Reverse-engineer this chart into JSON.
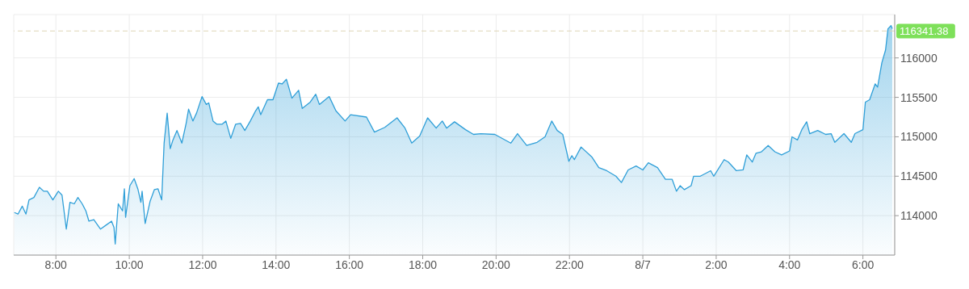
{
  "chart_data": {
    "type": "area",
    "x": [
      "--08-06T06:52",
      "--08-06T06:58",
      "--08-06T07:05",
      "--08-06T07:11",
      "--08-06T07:16",
      "--08-06T07:24",
      "--08-06T07:33",
      "--08-06T07:40",
      "--08-06T07:46",
      "--08-06T07:55",
      "--08-06T08:04",
      "--08-06T08:10",
      "--08-06T08:17",
      "--08-06T08:23",
      "--08-06T08:30",
      "--08-06T08:36",
      "--08-06T08:43",
      "--08-06T08:49",
      "--08-06T08:54",
      "--08-06T09:02",
      "--08-06T09:13",
      "--08-06T09:22",
      "--08-06T09:31",
      "--08-06T09:35",
      "--08-06T09:37",
      "--08-06T09:42",
      "--08-06T09:49",
      "--08-06T09:52",
      "--08-06T09:54",
      "--08-06T10:01",
      "--08-06T10:08",
      "--08-06T10:14",
      "--08-06T10:19",
      "--08-06T10:21",
      "--08-06T10:26",
      "--08-06T10:34",
      "--08-06T10:41",
      "--08-06T10:47",
      "--08-06T10:53",
      "--08-06T10:57",
      "--08-06T11:02",
      "--08-06T11:07",
      "--08-06T11:11",
      "--08-06T11:18",
      "--08-06T11:26",
      "--08-06T11:33",
      "--08-06T11:37",
      "--08-06T11:44",
      "--08-06T11:50",
      "--08-06T11:59",
      "--08-06T12:06",
      "--08-06T12:10",
      "--08-06T12:17",
      "--08-06T12:23",
      "--08-06T12:32",
      "--08-06T12:38",
      "--08-06T12:46",
      "--08-06T12:54",
      "--08-06T13:02",
      "--08-06T13:09",
      "--08-06T13:18",
      "--08-06T13:26",
      "--08-06T13:31",
      "--08-06T13:35",
      "--08-06T13:46",
      "--08-06T13:55",
      "--08-06T14:04",
      "--08-06T14:10",
      "--08-06T14:17",
      "--08-06T14:26",
      "--08-06T14:37",
      "--08-06T14:43",
      "--08-06T14:56",
      "--08-06T15:05",
      "--08-06T15:11",
      "--08-06T15:27",
      "--08-06T15:38",
      "--08-06T15:53",
      "--08-06T16:02",
      "--08-06T16:28",
      "--08-06T16:41",
      "--08-06T16:58",
      "--08-06T17:18",
      "--08-06T17:31",
      "--08-06T17:42",
      "--08-06T17:55",
      "--08-06T18:08",
      "--08-06T18:22",
      "--08-06T18:32",
      "--08-06T18:39",
      "--08-06T18:52",
      "--08-06T19:10",
      "--08-06T19:23",
      "--08-06T19:35",
      "--08-06T19:58",
      "--08-06T20:24",
      "--08-06T20:35",
      "--08-06T20:50",
      "--08-06T21:07",
      "--08-06T21:20",
      "--08-06T21:31",
      "--08-06T21:40",
      "--08-06T21:49",
      "--08-06T21:59",
      "--08-06T22:04",
      "--08-06T22:08",
      "--08-06T22:19",
      "--08-06T22:37",
      "--08-06T22:48",
      "--08-06T23:01",
      "--08-06T23:16",
      "--08-06T23:25",
      "--08-06T23:36",
      "--08-06T23:49",
      "--08-07T00:00",
      "--08-07T00:09",
      "--08-07T00:24",
      "--08-07T00:37",
      "--08-07T00:48",
      "--08-07T00:55",
      "--08-07T01:01",
      "--08-07T01:08",
      "--08-07T01:19",
      "--08-07T01:23",
      "--08-07T01:34",
      "--08-07T01:51",
      "--08-07T01:56",
      "--08-07T02:13",
      "--08-07T02:20",
      "--08-07T02:33",
      "--08-07T02:44",
      "--08-07T02:50",
      "--08-07T02:59",
      "--08-07T03:05",
      "--08-07T03:14",
      "--08-07T03:25",
      "--08-07T03:36",
      "--08-07T03:47",
      "--08-07T04:00",
      "--08-07T04:04",
      "--08-07T04:13",
      "--08-07T04:20",
      "--08-07T04:28",
      "--08-07T04:33",
      "--08-07T04:46",
      "--08-07T04:59",
      "--08-07T05:08",
      "--08-07T05:14",
      "--08-07T05:29",
      "--08-07T05:41",
      "--08-07T05:47",
      "--08-07T06:00",
      "--08-07T06:04",
      "--08-07T06:11",
      "--08-07T06:20",
      "--08-07T06:24",
      "--08-07T06:31",
      "--08-07T06:37",
      "--08-07T06:41",
      "--08-07T06:46",
      "--08-07T06:48"
    ],
    "series": [
      {
        "color": "#2f9fd8",
        "values": [
          114040,
          114020,
          114120,
          114020,
          114200,
          114230,
          114360,
          114310,
          114310,
          114200,
          114310,
          114260,
          113830,
          114170,
          114150,
          114230,
          114150,
          114060,
          113930,
          113950,
          113830,
          113880,
          113930,
          113850,
          113640,
          114150,
          114060,
          114340,
          113980,
          114380,
          114470,
          114340,
          114170,
          114310,
          113900,
          114180,
          114330,
          114340,
          114200,
          114920,
          115300,
          114850,
          114950,
          115080,
          114920,
          115170,
          115350,
          115200,
          115300,
          115510,
          115410,
          115430,
          115200,
          115160,
          115160,
          115200,
          114980,
          115160,
          115170,
          115080,
          115200,
          115320,
          115380,
          115280,
          115470,
          115470,
          115680,
          115670,
          115730,
          115490,
          115590,
          115360,
          115440,
          115540,
          115410,
          115510,
          115330,
          115200,
          115280,
          115250,
          115060,
          115120,
          115240,
          115110,
          114920,
          115010,
          115240,
          115110,
          115200,
          115110,
          115190,
          115090,
          115030,
          115040,
          115030,
          114920,
          115040,
          114890,
          114930,
          115000,
          115200,
          115080,
          115030,
          114690,
          114760,
          114710,
          114870,
          114740,
          114610,
          114570,
          114500,
          114420,
          114580,
          114630,
          114580,
          114670,
          114610,
          114460,
          114460,
          114310,
          114380,
          114330,
          114380,
          114500,
          114500,
          114570,
          114500,
          114710,
          114680,
          114570,
          114580,
          114770,
          114680,
          114790,
          114810,
          114890,
          114810,
          114770,
          114820,
          115000,
          114960,
          115090,
          115190,
          115040,
          115080,
          115030,
          115040,
          114930,
          115040,
          114930,
          115040,
          115090,
          115440,
          115470,
          115670,
          115630,
          115940,
          116100,
          116370,
          116410,
          116370
        ]
      }
    ],
    "xlim": [
      "--08-06T06:51",
      "--08-07T06:52"
    ],
    "xticks": [
      {
        "value": "--08-06T08:00",
        "label": "8:00"
      },
      {
        "value": "--08-06T10:00",
        "label": "10:00"
      },
      {
        "value": "--08-06T12:00",
        "label": "12:00"
      },
      {
        "value": "--08-06T14:00",
        "label": "14:00"
      },
      {
        "value": "--08-06T16:00",
        "label": "16:00"
      },
      {
        "value": "--08-06T18:00",
        "label": "18:00"
      },
      {
        "value": "--08-06T20:00",
        "label": "20:00"
      },
      {
        "value": "--08-06T22:00",
        "label": "22:00"
      },
      {
        "value": "--08-07T00:00",
        "label": "8/7"
      },
      {
        "value": "--08-07T02:00",
        "label": "2:00"
      },
      {
        "value": "--08-07T04:00",
        "label": "4:00"
      },
      {
        "value": "--08-07T06:00",
        "label": "6:00"
      }
    ],
    "ylim": [
      113500,
      116550
    ],
    "yticks": [
      114000,
      114500,
      115000,
      115500,
      116000
    ],
    "ref_lines": [
      {
        "axis": "y",
        "value": 116341.38,
        "label": "116341.38",
        "color": "#e0d6b8",
        "line_style": "dashed"
      }
    ],
    "grid": true,
    "legend": false,
    "marker": "none",
    "line_style": "solid"
  }
}
